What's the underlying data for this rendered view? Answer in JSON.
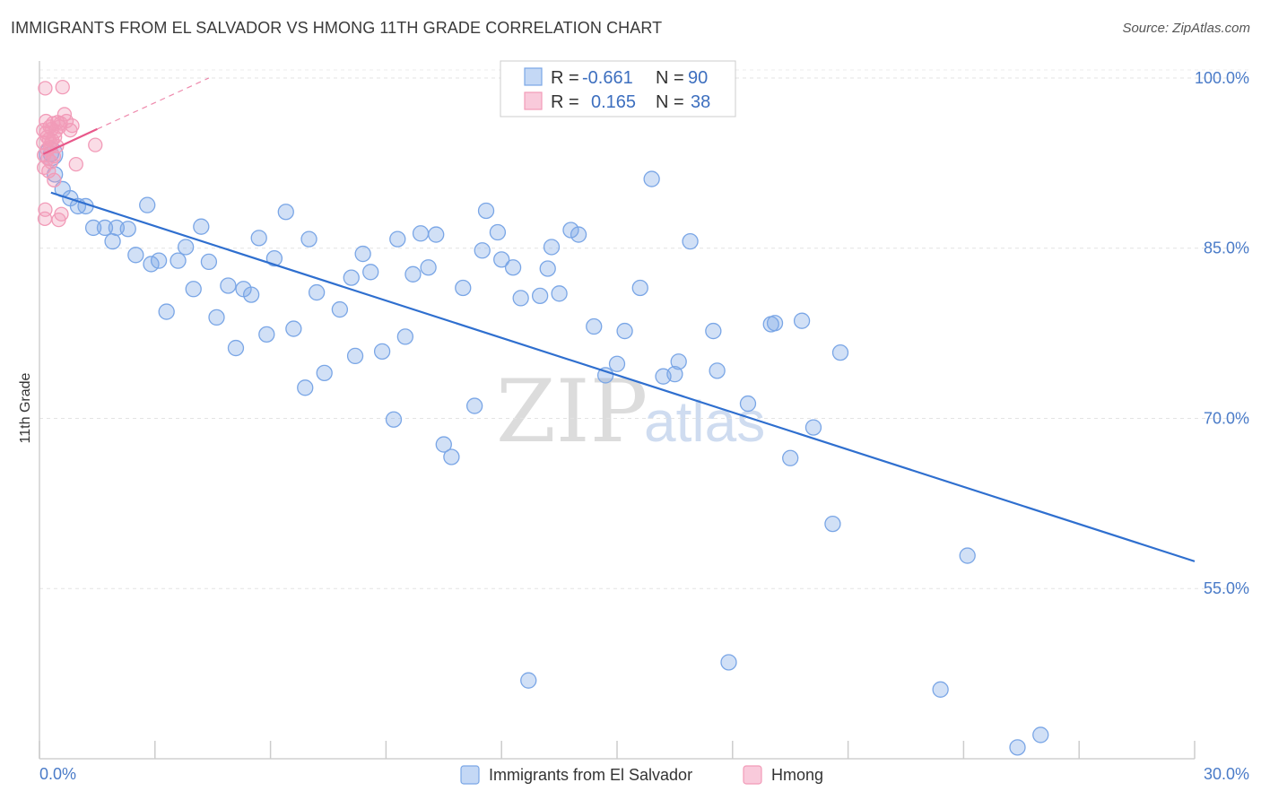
{
  "chart_data": {
    "type": "scatter",
    "title": "IMMIGRANTS FROM EL SALVADOR VS HMONG 11TH GRADE CORRELATION CHART",
    "source": "Source: ZipAtlas.com",
    "ylabel": "11th Grade",
    "xlabel": "",
    "xlim": [
      0,
      30
    ],
    "ylim": [
      40,
      101.5
    ],
    "x_tick_labels": [
      "0.0%",
      "30.0%"
    ],
    "y_ticks": [
      100,
      85,
      70,
      55
    ],
    "y_tick_labels": [
      "100.0%",
      "85.0%",
      "70.0%",
      "55.0%"
    ],
    "watermark": {
      "zip": "ZIP",
      "atlas": "atlas"
    },
    "legend_stats": [
      {
        "r_label": "R = ",
        "r_value": "-0.661",
        "n_label": "N = ",
        "n_value": "90"
      },
      {
        "r_label": "R = ",
        "r_value": "0.165",
        "n_label": "N = ",
        "n_value": "38"
      }
    ],
    "series": [
      {
        "name": "Immigrants from El Salvador",
        "color": "#7aa6e6",
        "line_color": "#2f6fcf",
        "trend": {
          "x": [
            0.3,
            30.0
          ],
          "y": [
            89.9,
            57.4
          ]
        },
        "points": [
          [
            0.3,
            93.3
          ],
          [
            0.4,
            91.5
          ],
          [
            0.6,
            90.2
          ],
          [
            0.8,
            89.4
          ],
          [
            1.0,
            88.7
          ],
          [
            1.2,
            88.7
          ],
          [
            1.4,
            86.8
          ],
          [
            1.7,
            86.8
          ],
          [
            1.9,
            85.6
          ],
          [
            2.0,
            86.8
          ],
          [
            2.3,
            86.7
          ],
          [
            2.5,
            84.4
          ],
          [
            2.8,
            88.8
          ],
          [
            2.9,
            83.6
          ],
          [
            3.1,
            83.9
          ],
          [
            3.3,
            79.4
          ],
          [
            3.6,
            83.9
          ],
          [
            3.8,
            85.1
          ],
          [
            4.0,
            81.4
          ],
          [
            4.2,
            86.9
          ],
          [
            4.4,
            83.8
          ],
          [
            4.6,
            78.9
          ],
          [
            4.9,
            81.7
          ],
          [
            5.1,
            76.2
          ],
          [
            5.3,
            81.4
          ],
          [
            5.5,
            80.9
          ],
          [
            5.7,
            85.9
          ],
          [
            5.9,
            77.4
          ],
          [
            6.1,
            84.1
          ],
          [
            6.4,
            88.2
          ],
          [
            6.6,
            77.9
          ],
          [
            6.9,
            72.7
          ],
          [
            7.0,
            85.8
          ],
          [
            7.2,
            81.1
          ],
          [
            7.4,
            74.0
          ],
          [
            7.8,
            79.6
          ],
          [
            8.1,
            82.4
          ],
          [
            8.2,
            75.5
          ],
          [
            8.4,
            84.5
          ],
          [
            8.6,
            82.9
          ],
          [
            8.9,
            75.9
          ],
          [
            9.2,
            69.9
          ],
          [
            9.3,
            85.8
          ],
          [
            9.5,
            77.2
          ],
          [
            9.7,
            82.7
          ],
          [
            9.9,
            86.3
          ],
          [
            10.1,
            83.3
          ],
          [
            10.3,
            86.2
          ],
          [
            10.5,
            67.7
          ],
          [
            10.7,
            66.6
          ],
          [
            11.0,
            81.5
          ],
          [
            11.3,
            71.1
          ],
          [
            11.5,
            84.8
          ],
          [
            11.6,
            88.3
          ],
          [
            11.9,
            86.4
          ],
          [
            12.0,
            84.0
          ],
          [
            12.3,
            83.3
          ],
          [
            12.5,
            80.6
          ],
          [
            12.7,
            46.9
          ],
          [
            13.0,
            80.8
          ],
          [
            13.2,
            83.2
          ],
          [
            13.3,
            85.1
          ],
          [
            13.5,
            81.0
          ],
          [
            13.8,
            86.6
          ],
          [
            14.0,
            86.2
          ],
          [
            14.4,
            78.1
          ],
          [
            14.7,
            73.8
          ],
          [
            15.0,
            74.8
          ],
          [
            15.2,
            77.7
          ],
          [
            15.6,
            81.5
          ],
          [
            15.9,
            91.1
          ],
          [
            16.2,
            73.7
          ],
          [
            16.5,
            73.9
          ],
          [
            16.6,
            75.0
          ],
          [
            16.9,
            85.6
          ],
          [
            17.5,
            77.7
          ],
          [
            17.6,
            74.2
          ],
          [
            17.9,
            48.5
          ],
          [
            18.4,
            71.3
          ],
          [
            19.0,
            78.3
          ],
          [
            19.1,
            78.4
          ],
          [
            19.5,
            66.5
          ],
          [
            19.8,
            78.6
          ],
          [
            20.1,
            69.2
          ],
          [
            20.6,
            60.7
          ],
          [
            20.8,
            75.8
          ],
          [
            23.4,
            46.1
          ],
          [
            24.1,
            57.9
          ],
          [
            25.4,
            41.0
          ],
          [
            26.0,
            42.1
          ]
        ]
      },
      {
        "name": "Hmong",
        "color": "#f29bb8",
        "line_color": "#e8588a",
        "trend": {
          "x": [
            0.1,
            1.5
          ],
          "y": [
            93.3,
            95.5
          ]
        },
        "trend_ext": {
          "x": [
            1.5,
            4.4
          ],
          "y": [
            95.5,
            100.0
          ]
        },
        "points": [
          [
            0.1,
            95.4
          ],
          [
            0.1,
            94.3
          ],
          [
            0.12,
            93.2
          ],
          [
            0.12,
            92.1
          ],
          [
            0.14,
            87.6
          ],
          [
            0.15,
            88.4
          ],
          [
            0.17,
            96.2
          ],
          [
            0.18,
            95.2
          ],
          [
            0.2,
            94.8
          ],
          [
            0.2,
            93.7
          ],
          [
            0.22,
            92.9
          ],
          [
            0.24,
            91.8
          ],
          [
            0.25,
            94.6
          ],
          [
            0.27,
            95.7
          ],
          [
            0.28,
            93.9
          ],
          [
            0.3,
            94.2
          ],
          [
            0.3,
            92.6
          ],
          [
            0.32,
            95.5
          ],
          [
            0.33,
            94.5
          ],
          [
            0.35,
            96.0
          ],
          [
            0.37,
            93.1
          ],
          [
            0.38,
            91.0
          ],
          [
            0.4,
            94.8
          ],
          [
            0.42,
            95.3
          ],
          [
            0.45,
            94.0
          ],
          [
            0.47,
            96.1
          ],
          [
            0.5,
            87.5
          ],
          [
            0.52,
            95.7
          ],
          [
            0.55,
            96.0
          ],
          [
            0.57,
            88.0
          ],
          [
            0.6,
            99.2
          ],
          [
            0.65,
            96.8
          ],
          [
            0.7,
            96.2
          ],
          [
            0.8,
            95.4
          ],
          [
            0.85,
            95.8
          ],
          [
            0.95,
            92.4
          ],
          [
            1.45,
            94.1
          ],
          [
            0.15,
            99.1
          ]
        ]
      }
    ]
  },
  "legend_bottom": [
    {
      "label": "Immigrants from El Salvador",
      "color": "#7aa6e6"
    },
    {
      "label": "Hmong",
      "color": "#f29bb8"
    }
  ]
}
